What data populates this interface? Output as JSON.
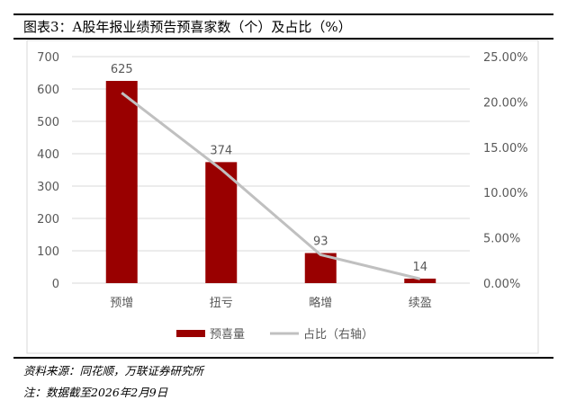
{
  "title": "图表3：A股年报业绩预告预喜家数（个）及占比（%）",
  "chart_data": {
    "type": "bar",
    "categories": [
      "预增",
      "扭亏",
      "略增",
      "续盈"
    ],
    "series": [
      {
        "name": "预喜量",
        "type": "bar",
        "axis": "left",
        "values": [
          625,
          374,
          93,
          14
        ],
        "color": "#990000",
        "data_labels": [
          "625",
          "374",
          "93",
          "14"
        ]
      },
      {
        "name": "占比（右轴）",
        "type": "line",
        "axis": "right",
        "values": [
          21.0,
          12.57,
          3.13,
          0.47
        ],
        "color": "#c0c0c0"
      }
    ],
    "ylim": [
      0,
      700
    ],
    "yticks": [
      "0",
      "100",
      "200",
      "300",
      "400",
      "500",
      "600",
      "700"
    ],
    "y2lim": [
      0,
      25
    ],
    "y2ticks": [
      "0.00%",
      "5.00%",
      "10.00%",
      "15.00%",
      "20.00%",
      "25.00%"
    ],
    "grid": true,
    "legend": "bottom"
  },
  "footer": {
    "source": "资料来源：同花顺，万联证券研究所",
    "note": "注：数据截至2026年2月9日"
  }
}
